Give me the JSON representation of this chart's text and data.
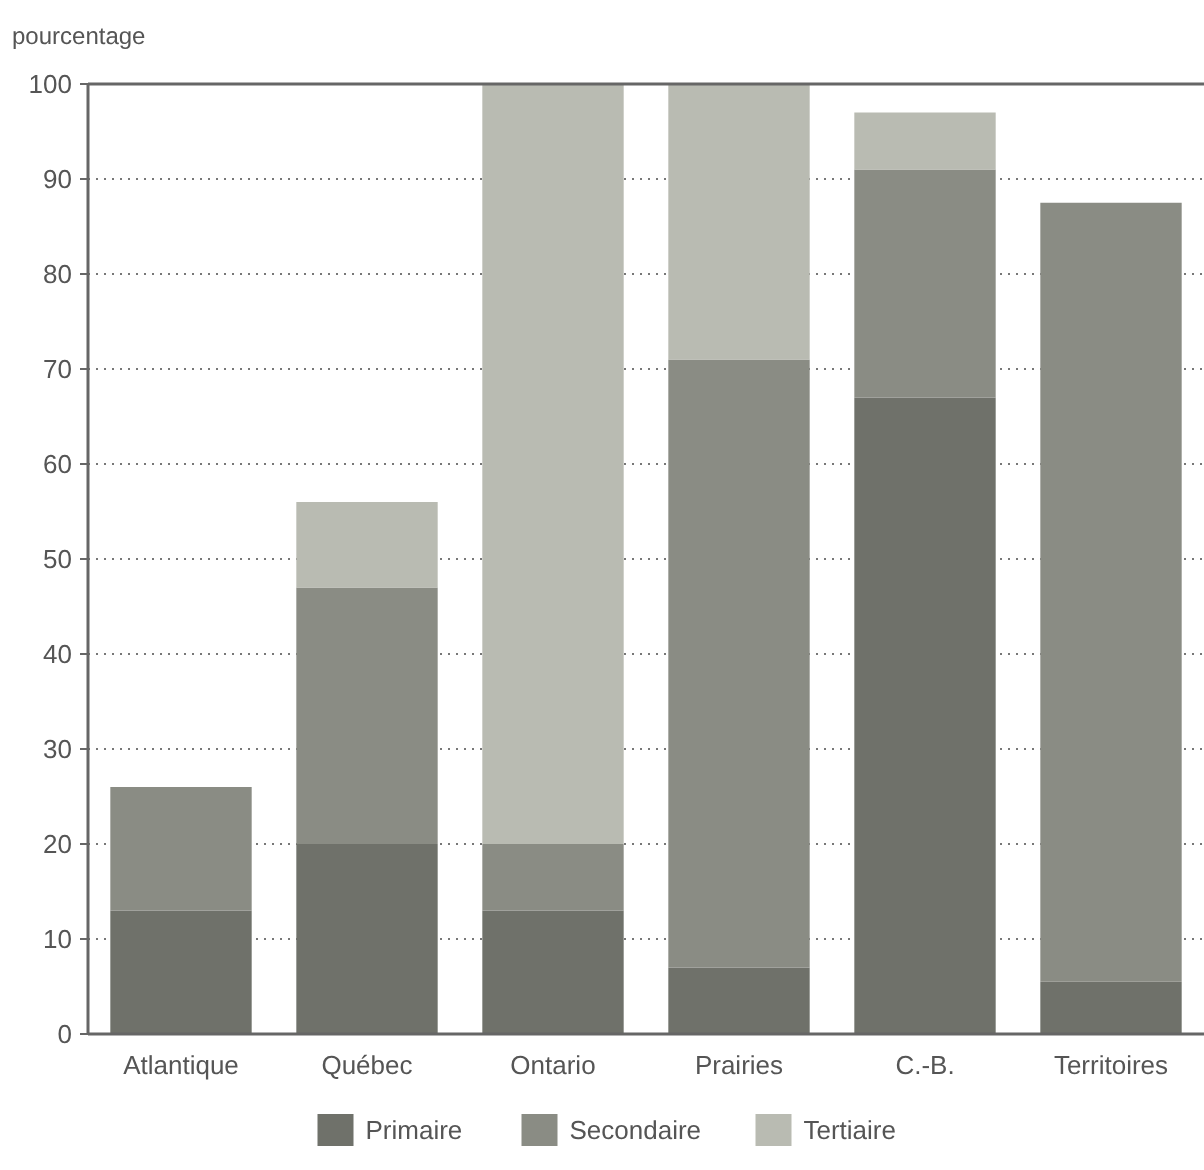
{
  "chart_data": {
    "type": "bar",
    "ylabel": "pourcentage",
    "categories": [
      "Atlantique",
      "Québec",
      "Ontario",
      "Prairies",
      "C.-B.",
      "Territoires"
    ],
    "stacked": true,
    "ylim": [
      0,
      100
    ],
    "yticks": [
      0,
      10,
      20,
      30,
      40,
      50,
      60,
      70,
      80,
      90,
      100
    ],
    "grid": "y",
    "legend": "bottom",
    "series": [
      {
        "name": "Primaire",
        "color": "#6f716a",
        "values": [
          13,
          20,
          13,
          7,
          67,
          5.5
        ]
      },
      {
        "name": "Secondaire",
        "color": "#8a8c84",
        "values": [
          13,
          27,
          7,
          64,
          24,
          82
        ]
      },
      {
        "name": "Tertiaire",
        "color": "#b9bbb2",
        "values": [
          0,
          9,
          80,
          29,
          6,
          0
        ]
      }
    ]
  }
}
